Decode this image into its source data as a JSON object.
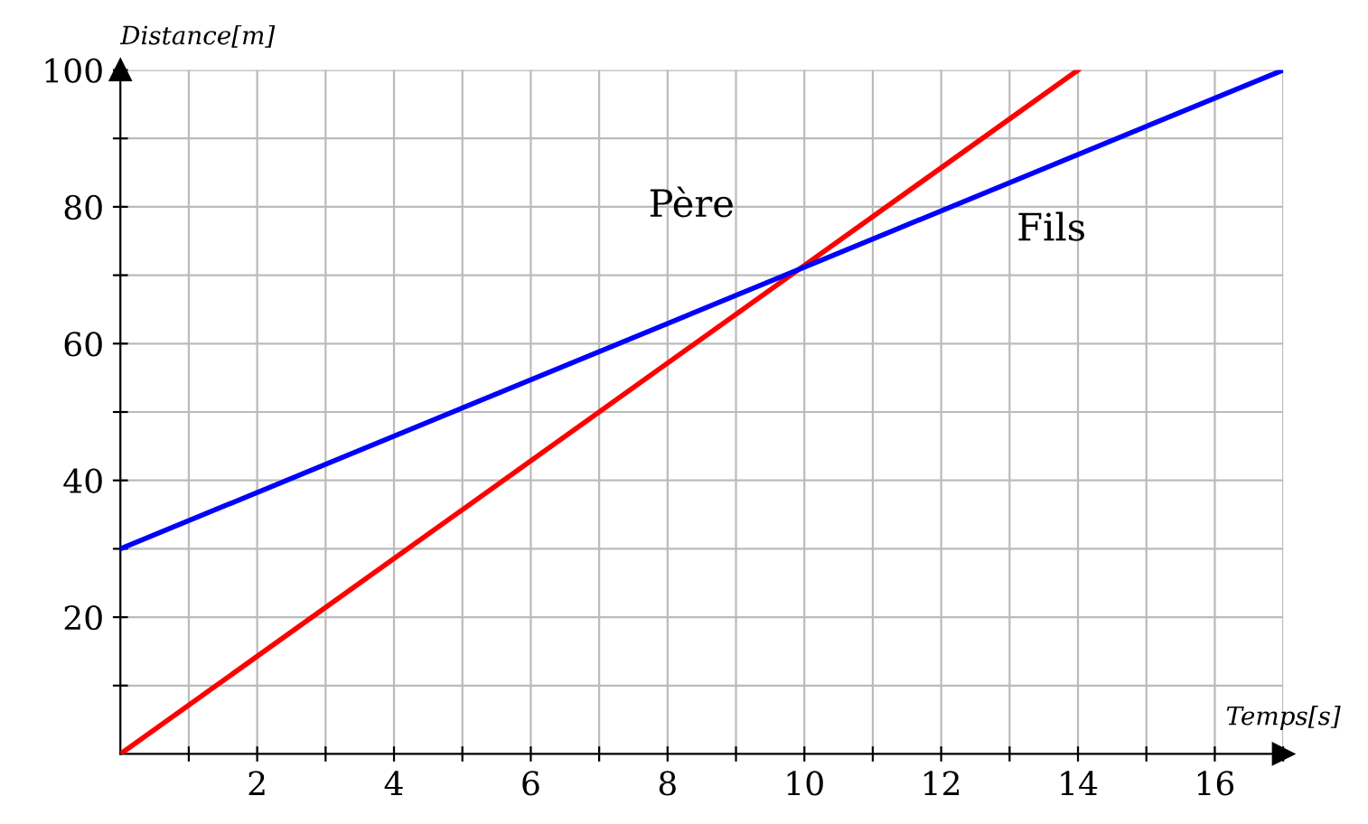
{
  "chart_data": {
    "type": "line",
    "xlabel": "Temps[s]",
    "ylabel": "Distance[m]",
    "series": [
      {
        "name": "Père",
        "color": "#ff0000",
        "x": [
          0,
          14
        ],
        "values": [
          0,
          100
        ]
      },
      {
        "name": "Fils",
        "color": "#0000ff",
        "x": [
          0,
          17
        ],
        "values": [
          30,
          100
        ]
      }
    ],
    "xlim": [
      0,
      17
    ],
    "ylim": [
      0,
      100
    ],
    "xticks": [
      {
        "value": 1,
        "label": null
      },
      2,
      {
        "value": 3,
        "label": null
      },
      4,
      {
        "value": 5,
        "label": null
      },
      6,
      {
        "value": 7,
        "label": null
      },
      8,
      {
        "value": 9,
        "label": null
      },
      10,
      {
        "value": 11,
        "label": null
      },
      12,
      {
        "value": 13,
        "label": null
      },
      14,
      {
        "value": 15,
        "label": null
      },
      16,
      {
        "value": 17,
        "label": null
      }
    ],
    "yticks": [
      {
        "value": 10,
        "label": null
      },
      20,
      {
        "value": 30,
        "label": null
      },
      40,
      {
        "value": 50,
        "label": null
      },
      60,
      {
        "value": 70,
        "label": null
      },
      80,
      {
        "value": 90,
        "label": null
      },
      100
    ],
    "grid": true,
    "legend": false,
    "marker": "none",
    "line_style": "solid"
  }
}
